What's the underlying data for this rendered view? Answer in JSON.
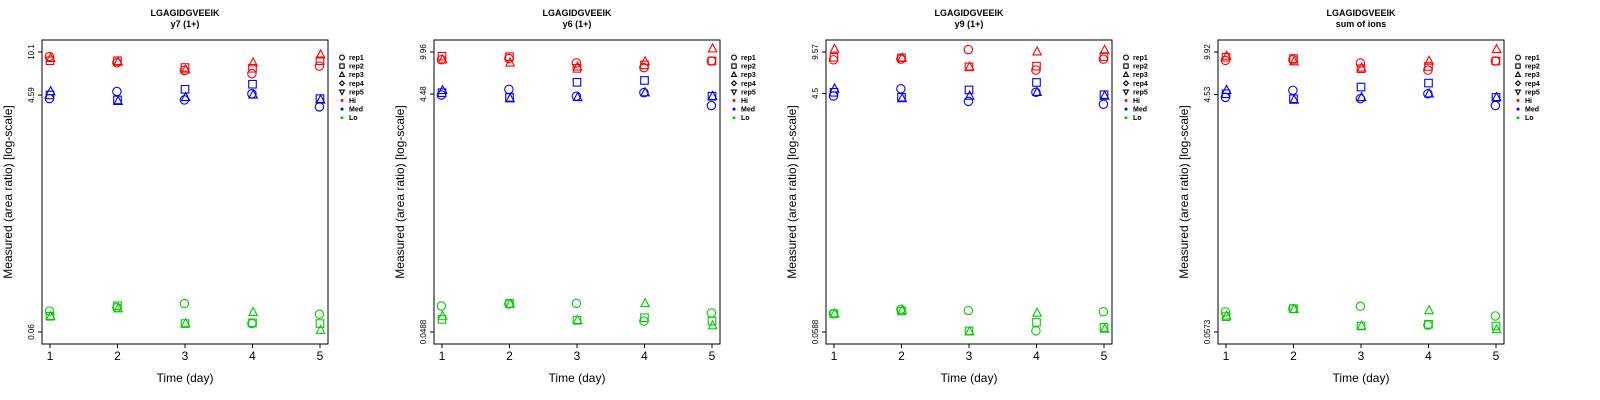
{
  "chart_data": [
    {
      "type": "scatter",
      "title": "LGAGIDGVEEIK",
      "subtitle": "y7 (1+)",
      "xlabel": "Time (day)",
      "ylabel": "Measured (area ratio) [log-scale]",
      "y_scale": "log",
      "ylim": [
        0.06,
        10.1
      ],
      "yticks": [
        "0.06",
        "4.59",
        "10.1"
      ],
      "x_ticks": [
        1,
        2,
        3,
        4,
        5
      ],
      "legend_position": "right",
      "legend": {
        "shapes": [
          {
            "label": "rep1",
            "shape": "circle"
          },
          {
            "label": "rep2",
            "shape": "square"
          },
          {
            "label": "rep3",
            "shape": "triangle-up"
          },
          {
            "label": "rep4",
            "shape": "diamond"
          },
          {
            "label": "rep5",
            "shape": "triangle-down"
          }
        ],
        "groups": [
          {
            "label": "Hi",
            "color": "#ff0000"
          },
          {
            "label": "Med",
            "color": "#0000ff"
          },
          {
            "label": "Lo",
            "color": "#00cc00"
          }
        ]
      },
      "series": [
        {
          "group": "Hi",
          "color": "#ff0000",
          "x": [
            1,
            1,
            1,
            2,
            2,
            2,
            3,
            3,
            3,
            4,
            4,
            4,
            5,
            5,
            5
          ],
          "y": [
            9.3,
            8.6,
            9.0,
            8.3,
            8.6,
            8.4,
            7.2,
            7.6,
            7.3,
            6.8,
            7.5,
            8.3,
            7.8,
            8.6,
            9.6
          ],
          "shape": [
            "circle",
            "square",
            "triangle",
            "circle",
            "square",
            "triangle",
            "circle",
            "square",
            "triangle",
            "circle",
            "square",
            "triangle",
            "circle",
            "square",
            "triangle"
          ]
        },
        {
          "group": "Med",
          "color": "#0000ff",
          "x": [
            1,
            1,
            1,
            2,
            2,
            2,
            3,
            3,
            3,
            4,
            4,
            4,
            5,
            5,
            5
          ],
          "y": [
            4.3,
            4.6,
            4.9,
            4.9,
            4.2,
            4.1,
            4.2,
            5.1,
            4.4,
            4.7,
            5.6,
            4.6,
            3.7,
            4.3,
            4.2
          ],
          "shape": [
            "circle",
            "square",
            "triangle",
            "circle",
            "square",
            "triangle",
            "circle",
            "square",
            "triangle",
            "circle",
            "square",
            "triangle",
            "circle",
            "square",
            "triangle"
          ]
        },
        {
          "group": "Lo",
          "color": "#00cc00",
          "x": [
            1,
            1,
            1,
            2,
            2,
            2,
            3,
            3,
            3,
            4,
            4,
            4,
            5,
            5,
            5
          ],
          "y": [
            0.088,
            0.08,
            0.08,
            0.094,
            0.097,
            0.092,
            0.101,
            0.07,
            0.07,
            0.07,
            0.071,
            0.086,
            0.083,
            0.07,
            0.062
          ],
          "shape": [
            "circle",
            "square",
            "triangle",
            "circle",
            "square",
            "triangle",
            "circle",
            "square",
            "triangle",
            "circle",
            "square",
            "triangle",
            "circle",
            "square",
            "triangle"
          ]
        }
      ]
    },
    {
      "type": "scatter",
      "title": "LGAGIDGVEEIK",
      "subtitle": "y6 (1+)",
      "xlabel": "Time (day)",
      "ylabel": "Measured (area ratio) [log-scale]",
      "y_scale": "log",
      "ylim": [
        0.0488,
        9.96
      ],
      "yticks": [
        "0.0488",
        "4.48",
        "9.96"
      ],
      "x_ticks": [
        1,
        2,
        3,
        4,
        5
      ],
      "legend_position": "right",
      "legend": {
        "shapes": [
          {
            "label": "rep1",
            "shape": "circle"
          },
          {
            "label": "rep2",
            "shape": "square"
          },
          {
            "label": "rep3",
            "shape": "triangle-up"
          },
          {
            "label": "rep4",
            "shape": "diamond"
          },
          {
            "label": "rep5",
            "shape": "triangle-down"
          }
        ],
        "groups": [
          {
            "label": "Hi",
            "color": "#ff0000"
          },
          {
            "label": "Med",
            "color": "#0000ff"
          },
          {
            "label": "Lo",
            "color": "#00cc00"
          }
        ]
      },
      "series": [
        {
          "group": "Hi",
          "color": "#ff0000",
          "x": [
            1,
            1,
            1,
            2,
            2,
            2,
            3,
            3,
            3,
            4,
            4,
            4,
            5,
            5,
            5
          ],
          "y": [
            8.6,
            9.2,
            8.6,
            8.8,
            9.1,
            8.1,
            8.1,
            7.3,
            7.5,
            7.4,
            7.8,
            8.3,
            8.4,
            8.4,
            10.6
          ],
          "shape": [
            "circle",
            "square",
            "triangle",
            "circle",
            "square",
            "triangle",
            "circle",
            "square",
            "triangle",
            "circle",
            "square",
            "triangle",
            "circle",
            "square",
            "triangle"
          ]
        },
        {
          "group": "Med",
          "color": "#0000ff",
          "x": [
            1,
            1,
            1,
            2,
            2,
            2,
            3,
            3,
            3,
            4,
            4,
            4,
            5,
            5,
            5
          ],
          "y": [
            4.4,
            4.6,
            4.8,
            4.9,
            4.2,
            4.1,
            4.3,
            5.6,
            4.2,
            4.6,
            5.8,
            4.6,
            3.6,
            4.3,
            4.3
          ],
          "shape": [
            "circle",
            "square",
            "triangle",
            "circle",
            "square",
            "triangle",
            "circle",
            "square",
            "triangle",
            "circle",
            "square",
            "triangle",
            "circle",
            "square",
            "triangle"
          ]
        },
        {
          "group": "Lo",
          "color": "#00cc00",
          "x": [
            1,
            1,
            1,
            2,
            2,
            2,
            3,
            3,
            3,
            4,
            4,
            4,
            5,
            5,
            5
          ],
          "y": [
            0.08,
            0.062,
            0.066,
            0.083,
            0.084,
            0.083,
            0.084,
            0.061,
            0.061,
            0.06,
            0.064,
            0.084,
            0.07,
            0.06,
            0.055
          ],
          "shape": [
            "circle",
            "square",
            "triangle",
            "circle",
            "square",
            "triangle",
            "circle",
            "square",
            "triangle",
            "circle",
            "square",
            "triangle",
            "circle",
            "square",
            "triangle"
          ]
        }
      ]
    },
    {
      "type": "scatter",
      "title": "LGAGIDGVEEIK",
      "subtitle": "y9 (1+)",
      "xlabel": "Time (day)",
      "ylabel": "Measured (area ratio) [log-scale]",
      "y_scale": "log",
      "ylim": [
        0.0588,
        9.57
      ],
      "yticks": [
        "0.0588",
        "4.5",
        "9.57"
      ],
      "x_ticks": [
        1,
        2,
        3,
        4,
        5
      ],
      "legend_position": "right",
      "legend": {
        "shapes": [
          {
            "label": "rep1",
            "shape": "circle"
          },
          {
            "label": "rep2",
            "shape": "square"
          },
          {
            "label": "rep3",
            "shape": "triangle-up"
          },
          {
            "label": "rep4",
            "shape": "diamond"
          },
          {
            "label": "rep5",
            "shape": "triangle-down"
          }
        ],
        "groups": [
          {
            "label": "Hi",
            "color": "#ff0000"
          },
          {
            "label": "Med",
            "color": "#0000ff"
          },
          {
            "label": "Lo",
            "color": "#00cc00"
          }
        ]
      },
      "series": [
        {
          "group": "Hi",
          "color": "#ff0000",
          "x": [
            1,
            1,
            1,
            2,
            2,
            2,
            3,
            3,
            3,
            4,
            4,
            4,
            5,
            5,
            5
          ],
          "y": [
            8.3,
            8.7,
            10.1,
            8.4,
            8.6,
            8.6,
            10.0,
            7.3,
            7.3,
            6.9,
            7.4,
            9.6,
            8.4,
            8.8,
            9.9
          ],
          "shape": [
            "circle",
            "square",
            "triangle",
            "circle",
            "square",
            "triangle",
            "circle",
            "square",
            "triangle",
            "circle",
            "square",
            "triangle",
            "circle",
            "square",
            "triangle"
          ]
        },
        {
          "group": "Med",
          "color": "#0000ff",
          "x": [
            1,
            1,
            1,
            2,
            2,
            2,
            3,
            3,
            3,
            4,
            4,
            4,
            5,
            5,
            5
          ],
          "y": [
            4.3,
            4.6,
            4.9,
            4.9,
            4.2,
            4.1,
            3.9,
            4.8,
            4.3,
            4.6,
            5.5,
            4.6,
            3.7,
            4.4,
            4.3
          ],
          "shape": [
            "circle",
            "square",
            "triangle",
            "circle",
            "square",
            "triangle",
            "circle",
            "square",
            "triangle",
            "circle",
            "square",
            "triangle",
            "circle",
            "square",
            "triangle"
          ]
        },
        {
          "group": "Lo",
          "color": "#00cc00",
          "x": [
            1,
            1,
            1,
            2,
            2,
            2,
            3,
            3,
            3,
            4,
            4,
            4,
            5,
            5,
            5
          ],
          "y": [
            0.082,
            0.082,
            0.082,
            0.089,
            0.086,
            0.087,
            0.087,
            0.06,
            0.059,
            0.06,
            0.07,
            0.083,
            0.085,
            0.064,
            0.062
          ],
          "shape": [
            "circle",
            "square",
            "triangle",
            "circle",
            "square",
            "triangle",
            "circle",
            "square",
            "triangle",
            "circle",
            "square",
            "triangle",
            "circle",
            "square",
            "triangle"
          ]
        }
      ]
    },
    {
      "type": "scatter",
      "title": "LGAGIDGVEEIK",
      "subtitle": "sum of ions",
      "xlabel": "Time (day)",
      "ylabel": "Measured (area ratio) [log-scale]",
      "y_scale": "log",
      "ylim": [
        0.0573,
        9.92
      ],
      "yticks": [
        "0.0573",
        "4.53",
        "9.92"
      ],
      "x_ticks": [
        1,
        2,
        3,
        4,
        5
      ],
      "legend_position": "right",
      "legend": {
        "shapes": [
          {
            "label": "rep1",
            "shape": "circle"
          },
          {
            "label": "rep2",
            "shape": "square"
          },
          {
            "label": "rep3",
            "shape": "triangle-up"
          },
          {
            "label": "rep4",
            "shape": "diamond"
          },
          {
            "label": "rep5",
            "shape": "triangle-down"
          }
        ],
        "groups": [
          {
            "label": "Hi",
            "color": "#ff0000"
          },
          {
            "label": "Med",
            "color": "#0000ff"
          },
          {
            "label": "Lo",
            "color": "#00cc00"
          }
        ]
      },
      "series": [
        {
          "group": "Hi",
          "color": "#ff0000",
          "x": [
            1,
            1,
            1,
            2,
            2,
            2,
            3,
            3,
            3,
            4,
            4,
            4,
            5,
            5,
            5
          ],
          "y": [
            8.5,
            9.0,
            9.2,
            8.6,
            8.8,
            8.3,
            8.1,
            7.3,
            7.4,
            7.1,
            7.6,
            8.4,
            8.4,
            8.4,
            10.4
          ],
          "shape": [
            "circle",
            "square",
            "triangle",
            "circle",
            "square",
            "triangle",
            "circle",
            "square",
            "triangle",
            "circle",
            "square",
            "triangle",
            "circle",
            "square",
            "triangle"
          ]
        },
        {
          "group": "Med",
          "color": "#0000ff",
          "x": [
            1,
            1,
            1,
            2,
            2,
            2,
            3,
            3,
            3,
            4,
            4,
            4,
            5,
            5,
            5
          ],
          "y": [
            4.3,
            4.6,
            4.9,
            4.9,
            4.2,
            4.1,
            4.2,
            5.2,
            4.3,
            4.6,
            5.6,
            4.6,
            3.7,
            4.3,
            4.3
          ],
          "shape": [
            "circle",
            "square",
            "triangle",
            "circle",
            "square",
            "triangle",
            "circle",
            "square",
            "triangle",
            "circle",
            "square",
            "triangle",
            "circle",
            "square",
            "triangle"
          ]
        },
        {
          "group": "Lo",
          "color": "#00cc00",
          "x": [
            1,
            1,
            1,
            2,
            2,
            2,
            3,
            3,
            3,
            4,
            4,
            4,
            5,
            5,
            5
          ],
          "y": [
            0.083,
            0.076,
            0.077,
            0.088,
            0.088,
            0.087,
            0.092,
            0.064,
            0.064,
            0.065,
            0.066,
            0.085,
            0.077,
            0.064,
            0.06
          ],
          "shape": [
            "circle",
            "square",
            "triangle",
            "circle",
            "square",
            "triangle",
            "circle",
            "square",
            "triangle",
            "circle",
            "square",
            "triangle",
            "circle",
            "square",
            "triangle"
          ]
        }
      ]
    }
  ]
}
